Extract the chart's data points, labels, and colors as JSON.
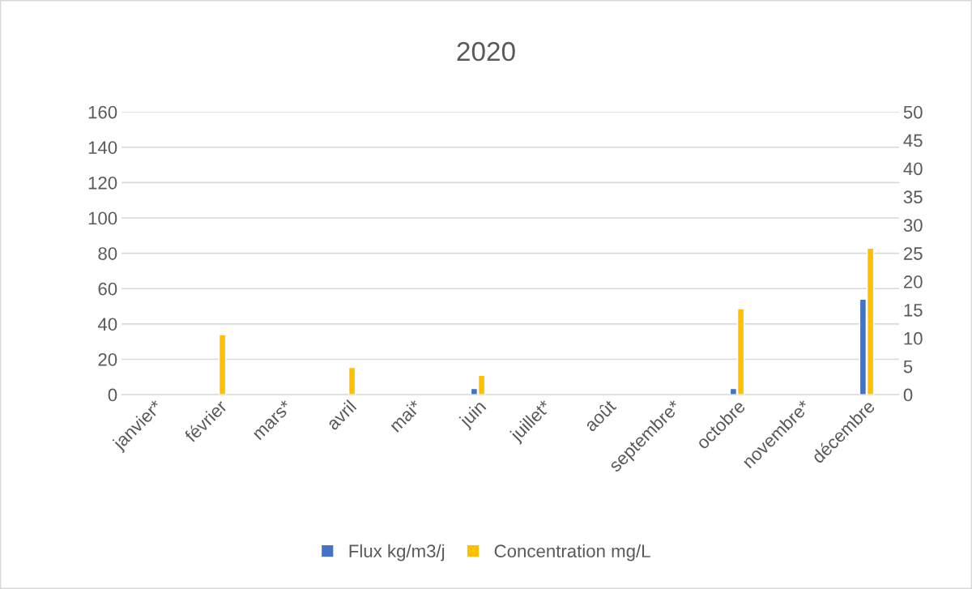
{
  "chart_data": {
    "type": "bar",
    "title": "2020",
    "categories": [
      "janvier*",
      "février",
      "mars*",
      "avril",
      "mai*",
      "juin",
      "juillet*",
      "août",
      "septembre*",
      "octobre",
      "novembre*",
      "décembre"
    ],
    "series": [
      {
        "name": "Flux kg/m3/j",
        "color": "#4472c4",
        "values": [
          null,
          null,
          null,
          null,
          null,
          3.5,
          null,
          null,
          null,
          3.5,
          null,
          54
        ]
      },
      {
        "name": "Concentration mg/L",
        "color": "#ffc000",
        "axis": "y2",
        "values": [
          null,
          10.6,
          null,
          4.8,
          null,
          3.4,
          null,
          null,
          null,
          15.2,
          null,
          25.9
        ]
      }
    ],
    "ylim": [
      0,
      160
    ],
    "yticks": [
      0,
      20,
      40,
      60,
      80,
      100,
      120,
      140,
      160
    ],
    "y2lim": [
      0,
      50
    ],
    "y2ticks": [
      0,
      5,
      10,
      15,
      20,
      25,
      30,
      35,
      40,
      45,
      50
    ],
    "grid": "y",
    "legend": "bottom"
  }
}
